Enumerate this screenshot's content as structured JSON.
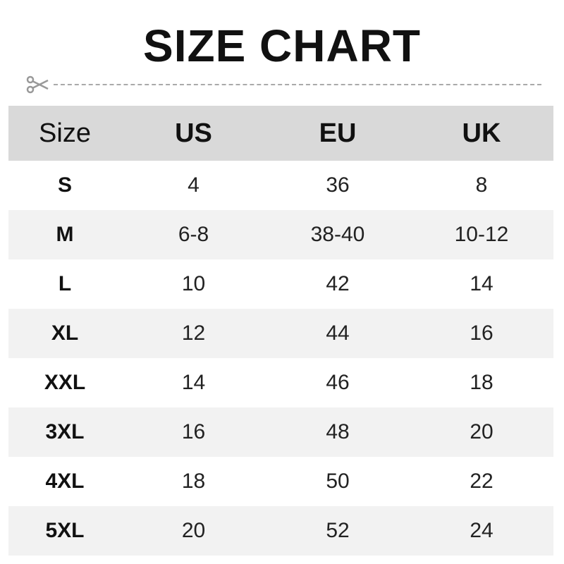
{
  "title": "SIZE CHART",
  "icons": {
    "cut_line": "scissors-icon"
  },
  "table": {
    "headers": [
      "Size",
      "US",
      "EU",
      "UK"
    ],
    "rows": [
      [
        "S",
        "4",
        "36",
        "8"
      ],
      [
        "M",
        "6-8",
        "38-40",
        "10-12"
      ],
      [
        "L",
        "10",
        "42",
        "14"
      ],
      [
        "XL",
        "12",
        "44",
        "16"
      ],
      [
        "XXL",
        "14",
        "46",
        "18"
      ],
      [
        "3XL",
        "16",
        "48",
        "20"
      ],
      [
        "4XL",
        "18",
        "50",
        "22"
      ],
      [
        "5XL",
        "20",
        "52",
        "24"
      ]
    ]
  }
}
